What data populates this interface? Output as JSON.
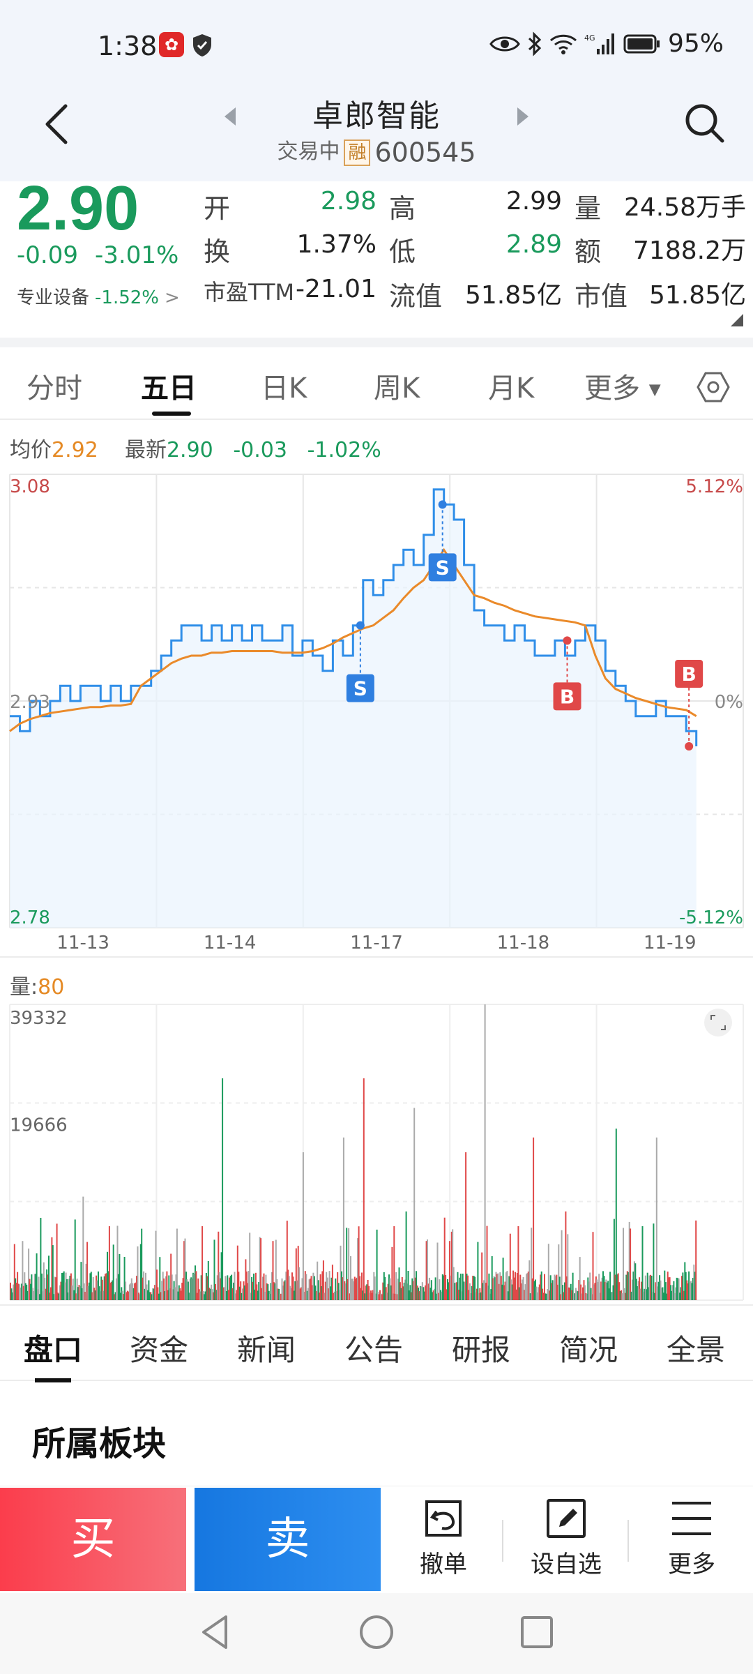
{
  "status_bar": {
    "time": "1:38",
    "battery": "95%",
    "network": "4G"
  },
  "header": {
    "stock_name": "卓郎智能",
    "trading_status": "交易中",
    "margin_badge": "融",
    "code": "600545"
  },
  "quote": {
    "price": "2.90",
    "change": "-0.09",
    "change_pct": "-3.01%",
    "sector_label": "专业设备",
    "sector_pct": "-1.52%",
    "open_label": "开",
    "open": "2.98",
    "high_label": "高",
    "high": "2.99",
    "volume_label": "量",
    "volume": "24.58万手",
    "turnover_label": "换",
    "turnover": "1.37%",
    "low_label": "低",
    "low": "2.89",
    "amount_label": "额",
    "amount": "7188.2万",
    "pe_label": "市盈TTM",
    "pe": "-21.01",
    "float_cap_label": "流值",
    "float_cap": "51.85亿",
    "market_cap_label": "市值",
    "market_cap": "51.85亿"
  },
  "period_tabs": {
    "fenshi": "分时",
    "wuri": "五日",
    "rik": "日K",
    "zhouk": "周K",
    "yuek": "月K",
    "more": "更多",
    "active": "五日"
  },
  "chart_header": {
    "avg_label": "均价",
    "avg_value": "2.92",
    "latest_label": "最新",
    "latest_value": "2.90",
    "latest_change": "-0.03",
    "latest_pct": "-1.02%"
  },
  "chart_data": {
    "type": "line",
    "y_left_labels": [
      "3.08",
      "2.93",
      "2.78"
    ],
    "y_right_labels": [
      "5.12%",
      "0%",
      "-5.12%"
    ],
    "ylim": [
      2.78,
      3.08
    ],
    "days": [
      "11-13",
      "11-14",
      "11-17",
      "11-18",
      "11-19"
    ],
    "series": [
      {
        "color": "#2f8ee8",
        "values": [
          2.92,
          2.91,
          2.93,
          2.92,
          2.93,
          2.94,
          2.93,
          2.94,
          2.94,
          2.93,
          2.94,
          2.93,
          2.94,
          2.94,
          2.95,
          2.96,
          2.97,
          2.98,
          2.98,
          2.97,
          2.98,
          2.97,
          2.98,
          2.97,
          2.98,
          2.97,
          2.97,
          2.98,
          2.96,
          2.97,
          2.96,
          2.95,
          2.97,
          2.96,
          2.98,
          3.01,
          3.0,
          3.01,
          3.02,
          3.03,
          3.02,
          3.04,
          3.07,
          3.06,
          3.05,
          3.02,
          2.99,
          2.98,
          2.98,
          2.97,
          2.98,
          2.97,
          2.96,
          2.96,
          2.97,
          2.96,
          2.97,
          2.98,
          2.97,
          2.95,
          2.94,
          2.93,
          2.92,
          2.92,
          2.93,
          2.92,
          2.92,
          2.91,
          2.9
        ]
      },
      {
        "color": "#ea8a2a",
        "values": [
          2.91,
          2.915,
          2.918,
          2.92,
          2.922,
          2.923,
          2.924,
          2.925,
          2.926,
          2.926,
          2.927,
          2.927,
          2.928,
          2.94,
          2.945,
          2.95,
          2.955,
          2.958,
          2.96,
          2.96,
          2.962,
          2.962,
          2.963,
          2.963,
          2.963,
          2.963,
          2.963,
          2.962,
          2.962,
          2.962,
          2.963,
          2.965,
          2.968,
          2.972,
          2.975,
          2.978,
          2.98,
          2.985,
          2.99,
          2.998,
          3.005,
          3.01,
          3.02,
          3.03,
          3.02,
          3.01,
          3.0,
          2.998,
          2.995,
          2.993,
          2.99,
          2.988,
          2.986,
          2.985,
          2.984,
          2.983,
          2.982,
          2.98,
          2.96,
          2.945,
          2.938,
          2.935,
          2.932,
          2.93,
          2.928,
          2.926,
          2.925,
          2.924,
          2.92
        ]
      }
    ],
    "markers": [
      {
        "type": "S",
        "day_frac": 2.39,
        "price": 2.98
      },
      {
        "type": "S",
        "day_frac": 2.95,
        "price": 3.06
      },
      {
        "type": "B",
        "day_frac": 3.8,
        "price": 2.97
      },
      {
        "type": "B",
        "day_frac": 4.63,
        "price": 2.9
      }
    ]
  },
  "volume": {
    "label": "量:",
    "value": "80",
    "ticks": [
      "39332",
      "19666"
    ]
  },
  "info_tabs": [
    "盘口",
    "资金",
    "新闻",
    "公告",
    "研报",
    "简况",
    "全景"
  ],
  "section": {
    "title": "所属板块"
  },
  "trade_bar": {
    "buy": "买",
    "sell": "卖",
    "cancel": "撤单",
    "watchlist": "设自选",
    "more": "更多"
  },
  "colors": {
    "up": "#e03a3a",
    "down": "#1a9a5c",
    "price_line": "#2f8ee8",
    "avg_line": "#ea8a2a",
    "buy_btn": "#fb3d4c",
    "sell_btn": "#1677e0"
  }
}
